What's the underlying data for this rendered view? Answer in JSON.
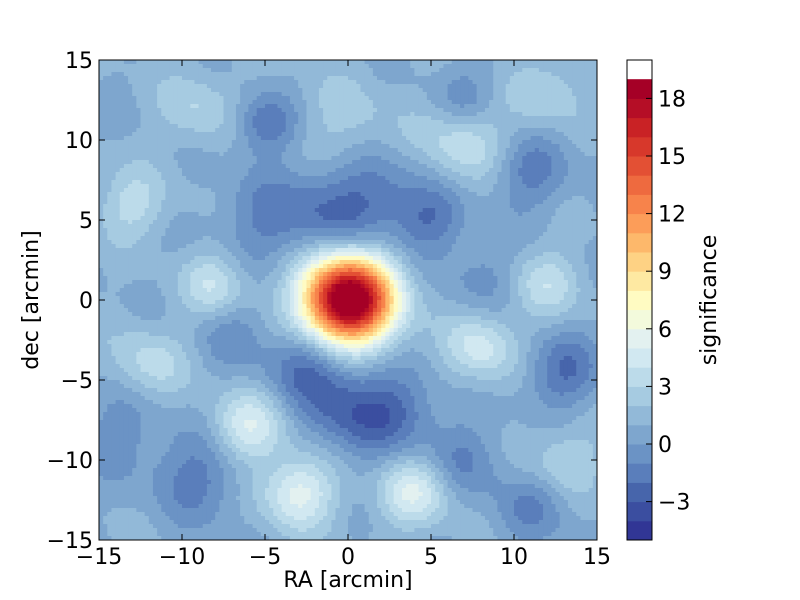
{
  "chart_data": {
    "type": "heatmap",
    "title": "",
    "xlabel": "RA [arcmin]",
    "ylabel": "dec [arcmin]",
    "xlim": [
      -15,
      15
    ],
    "ylim": [
      -15,
      15
    ],
    "x_ticks": [
      -15,
      -10,
      -5,
      0,
      5,
      10,
      15
    ],
    "y_ticks": [
      -15,
      -10,
      -5,
      0,
      5,
      10,
      15
    ],
    "x_tick_labels": [
      "−15",
      "−10",
      "−5",
      "0",
      "5",
      "10",
      "15"
    ],
    "y_tick_labels": [
      "−15",
      "−10",
      "−5",
      "0",
      "5",
      "10",
      "15"
    ],
    "grid": false,
    "colorbar": {
      "label": "significance",
      "range": [
        -5,
        20
      ],
      "levels": [
        -5,
        -4,
        -3,
        -2,
        -1,
        0,
        1,
        2,
        3,
        4,
        5,
        6,
        7,
        8,
        9,
        10,
        11,
        12,
        13,
        14,
        15,
        16,
        17,
        18,
        19,
        20
      ],
      "colors": [
        "#313695",
        "#3b4ea0",
        "#4765ab",
        "#5a7ebb",
        "#6b93c5",
        "#7ea6ce",
        "#92b9d8",
        "#a6cbe1",
        "#bcdbea",
        "#d1e8f1",
        "#e3f1f0",
        "#f3fadc",
        "#fffbc2",
        "#fee9a2",
        "#fed284",
        "#fdb86b",
        "#fc9d59",
        "#f7834b",
        "#ee6a3f",
        "#e35034",
        "#d7382b",
        "#c92225",
        "#b50e26",
        "#a50026"
      ],
      "ticks": [
        -3,
        0,
        3,
        6,
        9,
        12,
        15,
        18
      ],
      "tick_labels": [
        "−3",
        "0",
        "3",
        "6",
        "9",
        "12",
        "15",
        "18"
      ]
    },
    "peak": {
      "x": 0,
      "y": 0,
      "value": 20.5
    },
    "features": [
      {
        "x": 0,
        "y": 0,
        "amplitude": 20.5,
        "sigma": 1.9
      },
      {
        "x": -2.5,
        "y": -4,
        "amplitude": -3.0,
        "sigma": 1.8
      },
      {
        "x": 0,
        "y": -7,
        "amplitude": -3.0,
        "sigma": 2.0
      },
      {
        "x": 3,
        "y": -7,
        "amplitude": -2.5,
        "sigma": 1.8
      },
      {
        "x": -1,
        "y": 5.5,
        "amplitude": -2.5,
        "sigma": 2.2
      },
      {
        "x": 2,
        "y": 6.5,
        "amplitude": -2.0,
        "sigma": 2.0
      },
      {
        "x": -5,
        "y": 5,
        "amplitude": -2.0,
        "sigma": 2.0
      },
      {
        "x": 5,
        "y": 5,
        "amplitude": -2.5,
        "sigma": 1.5
      },
      {
        "x": -5,
        "y": 11,
        "amplitude": -3.0,
        "sigma": 1.3
      },
      {
        "x": 7,
        "y": 12.5,
        "amplitude": -2.0,
        "sigma": 1.4
      },
      {
        "x": 11,
        "y": 8,
        "amplitude": -2.5,
        "sigma": 1.6
      },
      {
        "x": 13,
        "y": -4.5,
        "amplitude": -3.0,
        "sigma": 1.6
      },
      {
        "x": -9,
        "y": -11,
        "amplitude": -2.5,
        "sigma": 2.0
      },
      {
        "x": 7,
        "y": -10,
        "amplitude": -2.0,
        "sigma": 1.6
      },
      {
        "x": 11,
        "y": -13,
        "amplitude": -2.0,
        "sigma": 1.6
      },
      {
        "x": -14,
        "y": -8,
        "amplitude": -1.5,
        "sigma": 2.0
      },
      {
        "x": -7,
        "y": -2,
        "amplitude": -1.5,
        "sigma": 1.5
      },
      {
        "x": 8,
        "y": 1.5,
        "amplitude": -1.5,
        "sigma": 1.5
      },
      {
        "x": -13,
        "y": 6,
        "amplitude": 2.5,
        "sigma": 1.5
      },
      {
        "x": -8,
        "y": 1,
        "amplitude": 3.0,
        "sigma": 1.4
      },
      {
        "x": -12,
        "y": -4,
        "amplitude": 2.5,
        "sigma": 1.6
      },
      {
        "x": 8,
        "y": -3,
        "amplitude": 3.5,
        "sigma": 1.5
      },
      {
        "x": 12,
        "y": 1,
        "amplitude": 2.5,
        "sigma": 1.5
      },
      {
        "x": -6,
        "y": -8,
        "amplitude": 4.0,
        "sigma": 1.6
      },
      {
        "x": -3,
        "y": -12,
        "amplitude": 4.5,
        "sigma": 1.6
      },
      {
        "x": 4,
        "y": -12,
        "amplitude": 4.0,
        "sigma": 1.5
      },
      {
        "x": 7,
        "y": 10,
        "amplitude": 3.0,
        "sigma": 1.8
      },
      {
        "x": -9,
        "y": 12,
        "amplitude": 2.0,
        "sigma": 1.6
      },
      {
        "x": 12,
        "y": 13,
        "amplitude": 2.0,
        "sigma": 1.5
      },
      {
        "x": 0,
        "y": 11,
        "amplitude": 1.5,
        "sigma": 2.2
      },
      {
        "x": 13,
        "y": -10,
        "amplitude": 2.0,
        "sigma": 1.6
      }
    ],
    "background_level": 1.0
  }
}
